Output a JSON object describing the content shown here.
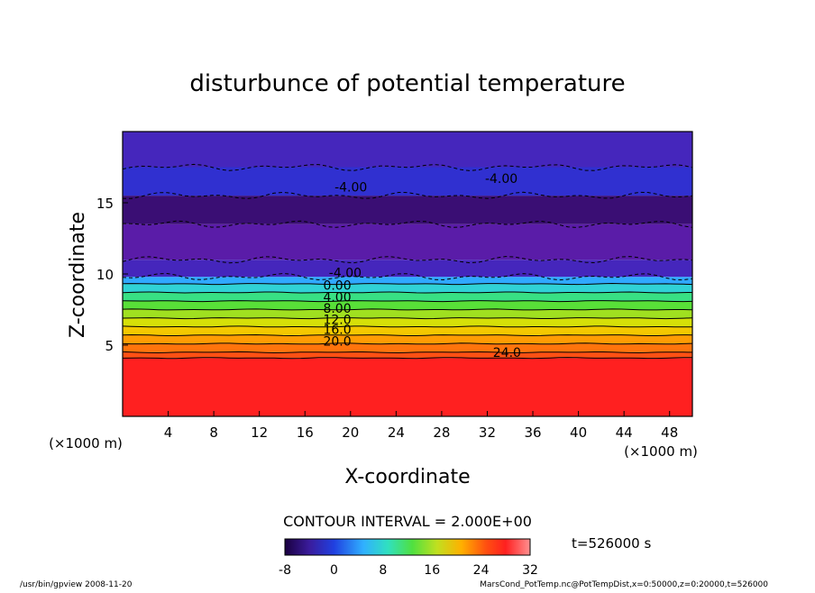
{
  "chart_data": {
    "type": "heatmap",
    "title": "disturbunce of potential temperature",
    "xlabel": "X-coordinate",
    "ylabel": "Z-coordinate",
    "x_unit": "(×1000 m)",
    "z_unit": "(×1000 m)",
    "xlim": [
      0,
      50
    ],
    "ylim": [
      0,
      20
    ],
    "x_ticks": [
      4,
      8,
      12,
      16,
      20,
      24,
      28,
      32,
      36,
      40,
      44,
      48
    ],
    "y_ticks": [
      5,
      10,
      15
    ],
    "contour_labels": [
      {
        "text": "-4.00",
        "x": 18.6,
        "y": 16.1
      },
      {
        "text": "-4.00",
        "x": 31.8,
        "y": 16.7
      },
      {
        "text": "-4.00",
        "x": 18.1,
        "y": 10.1
      },
      {
        "text": "0.00",
        "x": 17.6,
        "y": 9.2
      },
      {
        "text": "4.00",
        "x": 17.6,
        "y": 8.4
      },
      {
        "text": "8.00",
        "x": 17.6,
        "y": 7.6
      },
      {
        "text": "12.0",
        "x": 17.6,
        "y": 6.8
      },
      {
        "text": "16.0",
        "x": 17.6,
        "y": 6.1
      },
      {
        "text": "20.0",
        "x": 17.6,
        "y": 5.3
      },
      {
        "text": "24.0",
        "x": 32.5,
        "y": 4.5
      }
    ],
    "contour_interval": "CONTOUR INTERVAL = 2.000E+00",
    "time_label": "t=526000  s",
    "colorbar_ticks": [
      "-8",
      "0",
      "8",
      "16",
      "24",
      "32"
    ],
    "colorbar_range": [
      -8,
      32
    ],
    "bands": [
      {
        "z0": 0,
        "z1": 4.1,
        "value": 28
      },
      {
        "z0": 4.1,
        "z1": 4.5,
        "value": 25
      },
      {
        "z0": 4.5,
        "z1": 5.1,
        "value": 23
      },
      {
        "z0": 5.1,
        "z1": 5.7,
        "value": 21
      },
      {
        "z0": 5.7,
        "z1": 6.3,
        "value": 18
      },
      {
        "z0": 6.3,
        "z1": 6.9,
        "value": 15
      },
      {
        "z0": 6.9,
        "z1": 7.5,
        "value": 12
      },
      {
        "z0": 7.5,
        "z1": 8.1,
        "value": 9
      },
      {
        "z0": 8.1,
        "z1": 8.7,
        "value": 6
      },
      {
        "z0": 8.7,
        "z1": 9.3,
        "value": 3
      },
      {
        "z0": 9.3,
        "z1": 9.8,
        "value": 0
      },
      {
        "z0": 9.8,
        "z1": 11.0,
        "value": -5
      },
      {
        "z0": 11.0,
        "z1": 13.5,
        "value": -6
      },
      {
        "z0": 13.5,
        "z1": 15.5,
        "value": -7
      },
      {
        "z0": 15.5,
        "z1": 17.5,
        "value": -4
      },
      {
        "z0": 17.5,
        "z1": 20.0,
        "value": -5
      }
    ],
    "grid": false
  },
  "footer": {
    "left": "/usr/bin/gpview   2008-11-20",
    "right": "MarsCond_PotTemp.nc@PotTempDist,x=0:50000,z=0:20000,t=526000"
  }
}
